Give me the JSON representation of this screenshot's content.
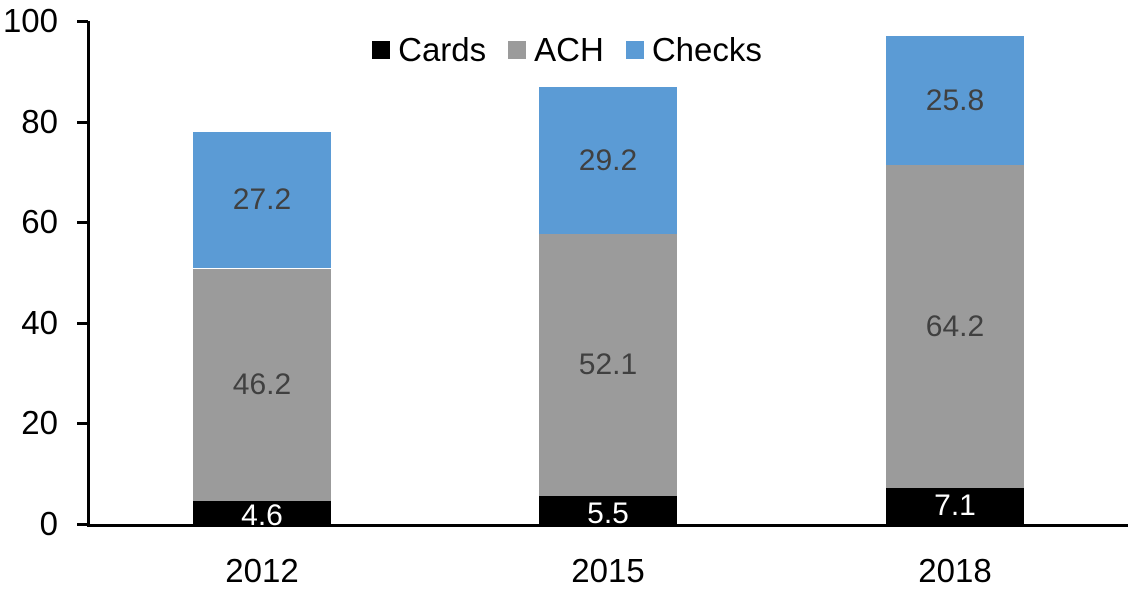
{
  "chart_data": {
    "type": "bar",
    "stacked": true,
    "title": "",
    "categories": [
      "2012",
      "2015",
      "2018"
    ],
    "series": [
      {
        "name": "Cards",
        "color": "#000000",
        "label_color": "#FFFFFF",
        "values": [
          4.6,
          5.5,
          7.1
        ]
      },
      {
        "name": "ACH",
        "color": "#9B9B9B",
        "label_color": "#404040",
        "values": [
          46.2,
          52.1,
          64.2
        ]
      },
      {
        "name": "Checks",
        "color": "#5B9BD5",
        "label_color": "#404040",
        "values": [
          27.2,
          29.2,
          25.8
        ]
      }
    ],
    "totals": [
      78.0,
      86.8,
      97.1
    ],
    "xlabel": "",
    "ylabel": "",
    "ylim": [
      0,
      100
    ],
    "yticks": [
      0,
      20,
      40,
      60,
      80,
      100
    ],
    "legend_position": "top",
    "grid": false,
    "axis_color": "#000000",
    "background_color": "#FFFFFF"
  }
}
